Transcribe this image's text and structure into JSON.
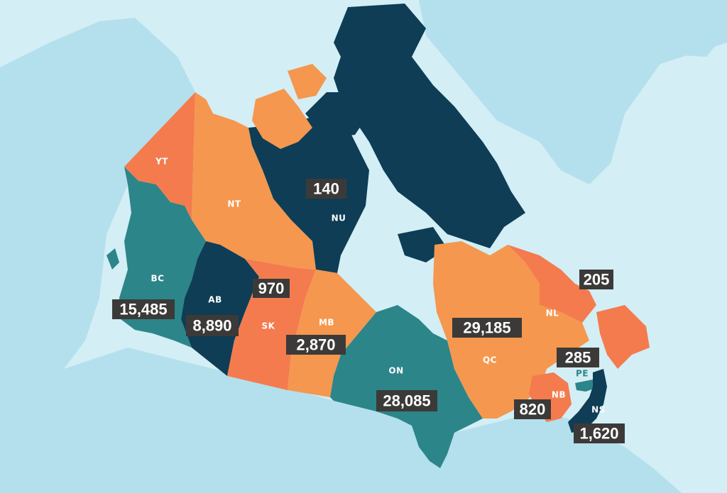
{
  "colors": {
    "ocean": "#d3eef5",
    "land_other": "#b3e0ec",
    "dark_navy": "#0e3d55",
    "teal": "#2c8589",
    "orange_light": "#f5974e",
    "orange_dark": "#f47b4e",
    "label_box": "#3b3a39",
    "label_text": "#ffffff"
  },
  "regions": [
    {
      "abbr": "YT",
      "value": "",
      "color": "orange_dark"
    },
    {
      "abbr": "NT",
      "value": "",
      "color": "orange_light"
    },
    {
      "abbr": "NU",
      "value": "140",
      "color": "dark_navy"
    },
    {
      "abbr": "BC",
      "value": "15,485",
      "color": "teal"
    },
    {
      "abbr": "AB",
      "value": "8,890",
      "color": "dark_navy"
    },
    {
      "abbr": "SK",
      "value": "970",
      "color": "orange_dark"
    },
    {
      "abbr": "MB",
      "value": "2,870",
      "color": "orange_light"
    },
    {
      "abbr": "ON",
      "value": "28,085",
      "color": "teal"
    },
    {
      "abbr": "QC",
      "value": "29,185",
      "color": "orange_light"
    },
    {
      "abbr": "NL",
      "value": "205",
      "color": "orange_dark"
    },
    {
      "abbr": "PE",
      "value": "285",
      "color": "teal"
    },
    {
      "abbr": "NB",
      "value": "820",
      "color": "orange_dark"
    },
    {
      "abbr": "NS",
      "value": "1,620",
      "color": "dark_navy"
    }
  ]
}
